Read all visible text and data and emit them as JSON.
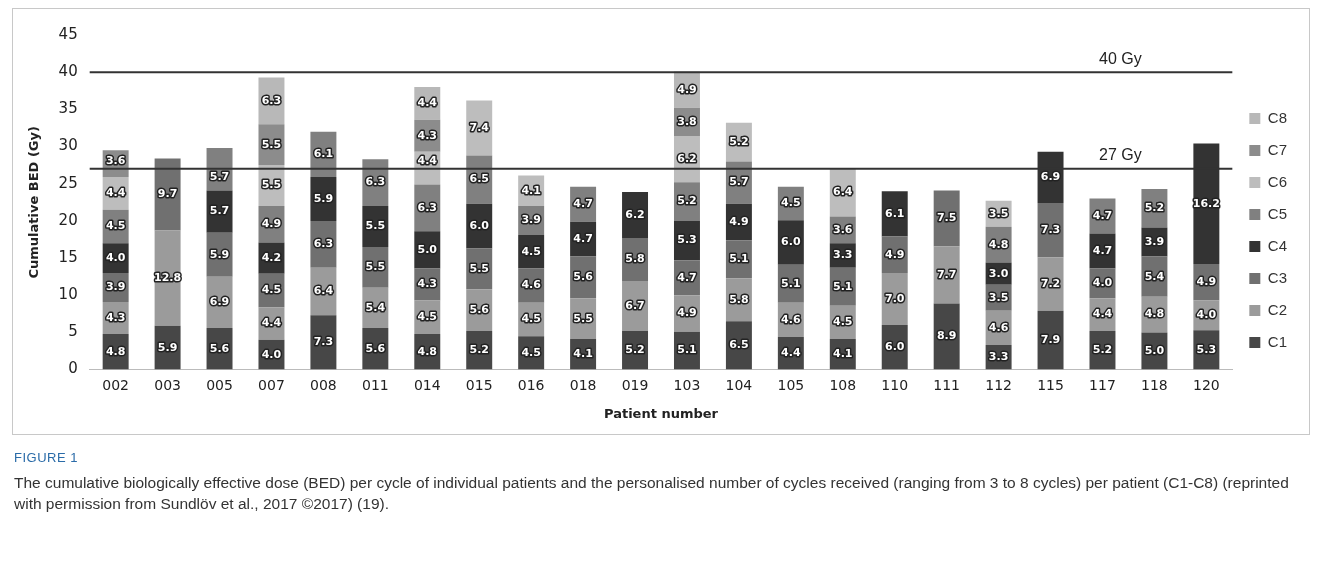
{
  "chart_data": {
    "type": "bar",
    "stacked": true,
    "xlabel": "Patient number",
    "ylabel": "Cumulative BED (Gy)",
    "categories": [
      "002",
      "003",
      "005",
      "007",
      "008",
      "011",
      "014",
      "015",
      "016",
      "018",
      "019",
      "103",
      "104",
      "105",
      "108",
      "110",
      "111",
      "112",
      "115",
      "117",
      "118",
      "120"
    ],
    "series": [
      {
        "name": "C1",
        "color": "#474747",
        "values": [
          4.8,
          5.9,
          5.6,
          4.0,
          7.3,
          5.6,
          4.8,
          5.2,
          4.5,
          4.1,
          5.2,
          5.1,
          6.5,
          4.4,
          4.1,
          6.0,
          8.9,
          3.3,
          7.9,
          5.2,
          5.0,
          5.3
        ],
        "value_labels": [
          "4.8",
          "5.9",
          "5.6",
          "4.0",
          "7.3",
          "5.6",
          "4.8",
          "5.2",
          "4.5",
          "4.1",
          "5.2",
          "5.1",
          "6.5",
          "4.4",
          "4.1",
          "6.0",
          "8.9",
          "3.3",
          "7.9",
          "5.2",
          "5.0",
          "5.3"
        ]
      },
      {
        "name": "C2",
        "color": "#9b9b9b",
        "values": [
          4.3,
          12.8,
          6.9,
          4.4,
          6.4,
          5.4,
          4.5,
          5.6,
          4.5,
          5.5,
          6.7,
          4.9,
          5.8,
          4.6,
          4.5,
          7.0,
          7.7,
          4.6,
          7.2,
          4.4,
          4.8,
          4.0
        ],
        "value_labels": [
          "4.3",
          "12.8",
          "6.9",
          "4.4",
          "6.4",
          "5.4",
          "4.5",
          "5.6",
          "4.5",
          "5.5",
          "6.7",
          "4.9",
          "5.8",
          "4.6",
          "4.5",
          "7.0",
          "7.7",
          "4.6",
          "7.2",
          "4.4",
          "4.8",
          "4.0"
        ]
      },
      {
        "name": "C3",
        "color": "#707070",
        "values": [
          3.9,
          9.7,
          5.9,
          4.5,
          6.3,
          5.5,
          4.3,
          5.5,
          4.6,
          5.6,
          5.8,
          4.7,
          5.1,
          5.1,
          5.1,
          4.9,
          7.5,
          3.5,
          7.3,
          4.0,
          5.4,
          4.9
        ],
        "value_labels": [
          "3.9",
          "9.7",
          "5.9",
          "4.5",
          "6.3",
          "5.5",
          "4.3",
          "5.5",
          "4.6",
          "5.6",
          "5.8",
          "4.7",
          "5.1",
          "5.1",
          "5.1",
          "4.9",
          "7.5",
          "3.5",
          "7.3",
          "4.0",
          "5.4",
          "4.9"
        ]
      },
      {
        "name": "C4",
        "color": "#333333",
        "values": [
          4.0,
          null,
          5.7,
          4.2,
          5.9,
          5.5,
          5.0,
          6.0,
          4.5,
          4.7,
          6.2,
          5.3,
          4.9,
          6.0,
          3.3,
          6.1,
          null,
          3.0,
          6.9,
          4.7,
          3.9,
          16.2
        ],
        "value_labels": [
          "4.0",
          null,
          "5.7",
          "4.2",
          "5.9",
          "5.5",
          "5.0",
          "6.0",
          "4.5",
          "4.7",
          "6.2",
          "5.3",
          "4.9",
          "6.0",
          "3.3",
          "6.1",
          null,
          "3.0",
          "6.9",
          "4.7",
          "3.9",
          "16.2"
        ]
      },
      {
        "name": "C5",
        "color": "#808080",
        "values": [
          4.5,
          null,
          5.7,
          4.9,
          6.1,
          6.3,
          6.3,
          6.5,
          3.9,
          4.7,
          null,
          5.2,
          5.7,
          4.5,
          3.6,
          null,
          null,
          4.8,
          null,
          4.7,
          5.2,
          null
        ],
        "value_labels": [
          "4.5",
          null,
          "5.7",
          "4.9",
          "6.1",
          "6.3",
          "6.3",
          "6.5",
          "3.9",
          "4.7",
          null,
          "5.2",
          "5.7",
          "4.5",
          "3.6",
          null,
          null,
          "4.8",
          null,
          "4.7",
          "5.2",
          null
        ]
      },
      {
        "name": "C6",
        "color": "#bdbdbd",
        "values": [
          4.4,
          null,
          null,
          5.5,
          null,
          null,
          4.4,
          7.4,
          4.1,
          null,
          null,
          6.2,
          5.2,
          null,
          6.4,
          null,
          null,
          3.5,
          null,
          null,
          null,
          null
        ],
        "value_labels": [
          "4.4",
          null,
          null,
          "5.5",
          null,
          null,
          "4.4",
          "7.4",
          "4.1",
          null,
          null,
          "6.2",
          "5.2",
          null,
          "6.4",
          null,
          null,
          "3.5",
          null,
          null,
          null,
          null
        ]
      },
      {
        "name": "C7",
        "color": "#8c8c8c",
        "values": [
          3.6,
          null,
          null,
          5.5,
          null,
          null,
          4.3,
          null,
          null,
          null,
          null,
          3.8,
          null,
          null,
          null,
          null,
          null,
          null,
          null,
          null,
          null,
          null
        ],
        "value_labels": [
          "3.6",
          null,
          null,
          "5.5",
          null,
          null,
          "4.3",
          null,
          null,
          null,
          null,
          "3.8",
          null,
          null,
          null,
          null,
          null,
          null,
          null,
          null,
          null,
          null
        ]
      },
      {
        "name": "C8",
        "color": "#b8b8b8",
        "values": [
          null,
          null,
          null,
          6.3,
          null,
          null,
          4.4,
          null,
          null,
          null,
          null,
          4.9,
          null,
          null,
          null,
          null,
          null,
          null,
          null,
          null,
          null,
          null
        ],
        "value_labels": [
          null,
          null,
          null,
          "6.3",
          null,
          null,
          "4.4",
          null,
          null,
          null,
          null,
          "4.9",
          null,
          null,
          null,
          null,
          null,
          null,
          null,
          null,
          null,
          null
        ]
      }
    ],
    "ylim": [
      0,
      45
    ],
    "yticks": [
      0,
      5,
      10,
      15,
      20,
      25,
      30,
      35,
      40,
      45
    ],
    "grid": false,
    "legend": "right",
    "ref_lines": [
      {
        "axis": "y",
        "value": 40,
        "label": "40 Gy",
        "color": "#333333"
      },
      {
        "axis": "y",
        "value": 27,
        "label": "27 Gy",
        "color": "#333333"
      }
    ],
    "annotations": [
      "FIGURE 1",
      "The cumulative biologically effective dose (BED) per cycle of individual patients and the personalised number of cycles received (ranging from 3 to 8 cycles) per patient (C1-C8) (reprinted with permission from Sundlöv et al., 2017 ©2017) (19)."
    ]
  }
}
